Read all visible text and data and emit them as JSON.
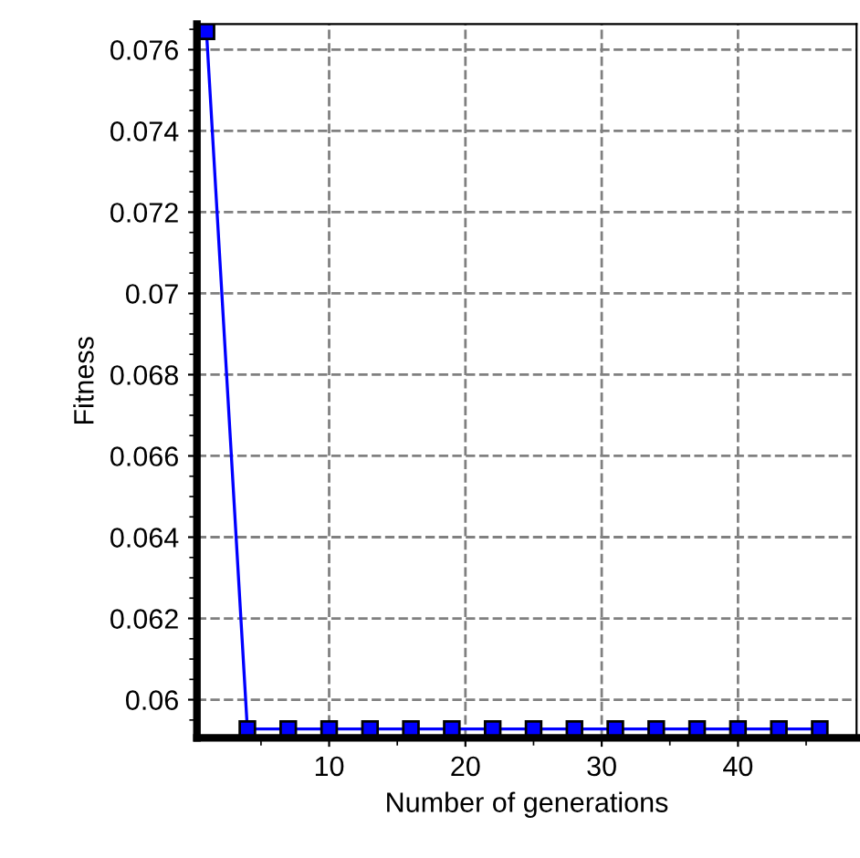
{
  "chart_data": {
    "type": "line",
    "xlabel": "Number of generations",
    "ylabel": "Fitness",
    "series": [
      {
        "color": "#0000ff",
        "x": [
          1,
          4,
          7,
          10,
          13,
          16,
          19,
          22,
          25,
          28,
          31,
          34,
          37,
          40,
          43,
          46
        ],
        "values": [
          0.07645,
          0.05928,
          0.05928,
          0.05928,
          0.05928,
          0.05928,
          0.05928,
          0.05928,
          0.05928,
          0.05928,
          0.05928,
          0.05928,
          0.05928,
          0.05928,
          0.05928,
          0.05928
        ]
      }
    ],
    "xlim": [
      0.3,
      48.7
    ],
    "xticks": [
      10,
      20,
      30,
      40
    ],
    "ylim": [
      0.05906,
      0.07663
    ],
    "yticks": [
      0.06,
      0.062,
      0.064,
      0.066,
      0.068,
      0.07,
      0.072,
      0.074,
      0.076
    ],
    "grid": true,
    "marker": "square",
    "line_style": "solid",
    "legend": false
  }
}
